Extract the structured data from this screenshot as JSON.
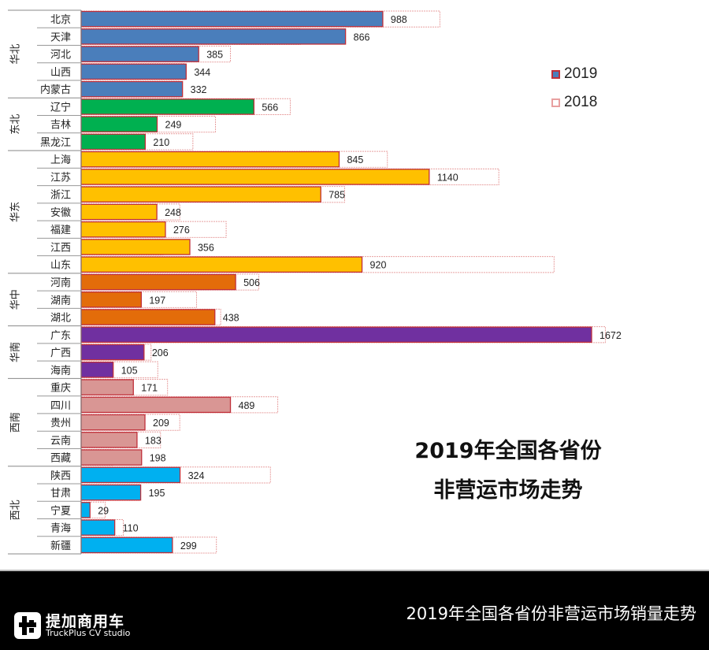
{
  "chart_data": {
    "type": "bar",
    "orientation": "horizontal",
    "title_lines": [
      "2019年全国各省份",
      "非营运市场走势"
    ],
    "xlim": [
      0,
      1750
    ],
    "grid": false,
    "legend_position": "top-right",
    "data_labels_series": "2019",
    "regions": [
      {
        "name": "华北",
        "color": "#4a7ebb",
        "provinces": [
          "北京",
          "天津",
          "河北",
          "山西",
          "内蒙古"
        ]
      },
      {
        "name": "东北",
        "color": "#00b050",
        "provinces": [
          "辽宁",
          "吉林",
          "黑龙江"
        ]
      },
      {
        "name": "华东",
        "color": "#ffc000",
        "provinces": [
          "上海",
          "江苏",
          "浙江",
          "安徽",
          "福建",
          "江西",
          "山东"
        ]
      },
      {
        "name": "华中",
        "color": "#e36c0a",
        "provinces": [
          "河南",
          "湖南",
          "湖北"
        ]
      },
      {
        "name": "华南",
        "color": "#7030a0",
        "provinces": [
          "广东",
          "广西",
          "海南"
        ]
      },
      {
        "name": "西南",
        "color": "#d99694",
        "provinces": [
          "重庆",
          "四川",
          "贵州",
          "云南",
          "西藏"
        ]
      },
      {
        "name": "西北",
        "color": "#00b0f0",
        "provinces": [
          "陕西",
          "甘肃",
          "宁夏",
          "青海",
          "新疆"
        ]
      }
    ],
    "categories": [
      "北京",
      "天津",
      "河北",
      "山西",
      "内蒙古",
      "辽宁",
      "吉林",
      "黑龙江",
      "上海",
      "江苏",
      "浙江",
      "安徽",
      "福建",
      "江西",
      "山东",
      "河南",
      "湖南",
      "湖北",
      "广东",
      "广西",
      "海南",
      "重庆",
      "四川",
      "贵州",
      "云南",
      "西藏",
      "陕西",
      "甘肃",
      "宁夏",
      "青海",
      "新疆"
    ],
    "series": [
      {
        "name": "2019",
        "values": [
          988,
          866,
          385,
          344,
          332,
          566,
          249,
          210,
          845,
          1140,
          785,
          248,
          276,
          356,
          920,
          506,
          197,
          438,
          1672,
          206,
          105,
          171,
          489,
          209,
          183,
          198,
          324,
          195,
          29,
          110,
          299
        ]
      },
      {
        "name": "2018",
        "values": [
          1175,
          718,
          489,
          339,
          325,
          685,
          440,
          366,
          1003,
          1368,
          863,
          323,
          475,
          268,
          1549,
          582,
          378,
          457,
          1717,
          229,
          251,
          283,
          644,
          323,
          260,
          103,
          620,
          190,
          79,
          138,
          443
        ]
      }
    ]
  },
  "legend": [
    {
      "label": "2019",
      "fill": "#4a7ebb",
      "border": "#c0303a"
    },
    {
      "label": "2018",
      "fill": "#ffffff",
      "border": "#e8a0a0"
    }
  ],
  "footer": {
    "brand_cn": "提加商用车",
    "brand_en": "TruckPlus CV studio",
    "caption": "2019年全国各省份非营运市场销量走势"
  }
}
